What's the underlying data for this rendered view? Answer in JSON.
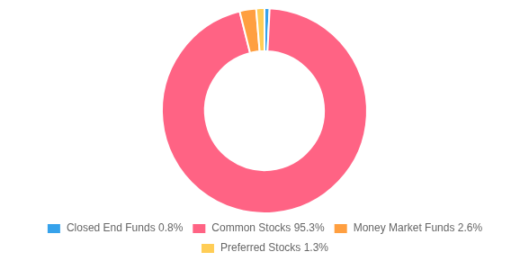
{
  "chart_data": {
    "type": "doughnut",
    "categories": [
      "Closed End Funds 0.8%",
      "Common Stocks 95.3%",
      "Money Market Funds 2.6%",
      "Preferred Stocks 1.3%"
    ],
    "values": [
      0.8,
      95.3,
      2.6,
      1.3
    ],
    "legend": "bottom"
  }
}
